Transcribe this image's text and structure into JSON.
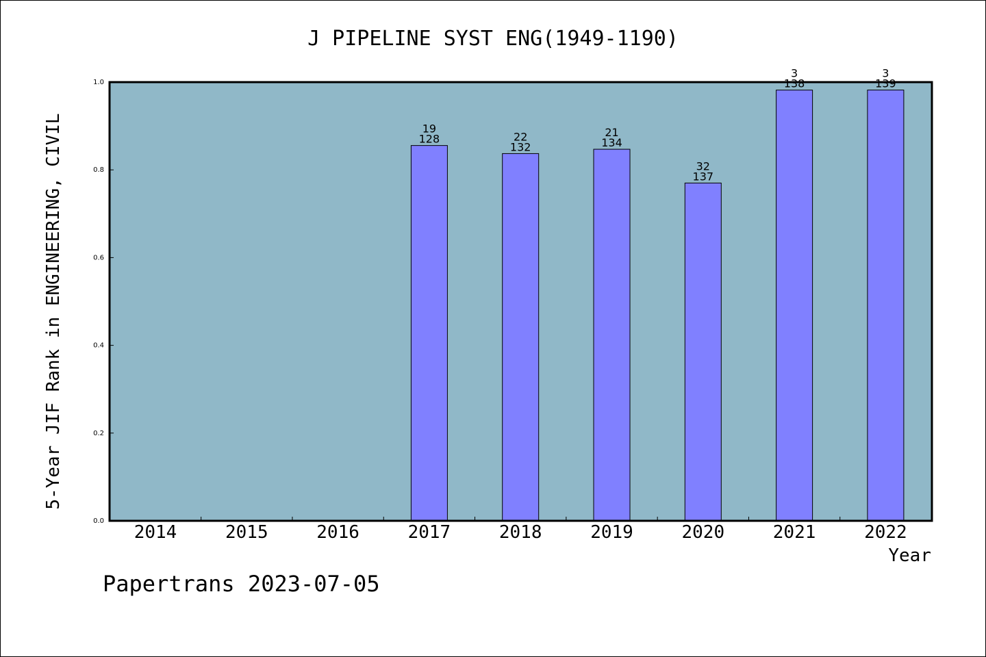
{
  "chart_data": {
    "type": "bar",
    "title": "J PIPELINE SYST ENG(1949-1190)",
    "xlabel": "Year",
    "ylabel": "5-Year JIF Rank in ENGINEERING, CIVIL",
    "categories": [
      "2014",
      "2015",
      "2016",
      "2017",
      "2018",
      "2019",
      "2020",
      "2021",
      "2022"
    ],
    "values": [
      null,
      null,
      null,
      0.8555,
      0.8371,
      0.847,
      0.77,
      0.9819,
      0.982
    ],
    "bar_labels": [
      null,
      null,
      null,
      {
        "rank": "19",
        "total": "128"
      },
      {
        "rank": "22",
        "total": "132"
      },
      {
        "rank": "21",
        "total": "134"
      },
      {
        "rank": "32",
        "total": "137"
      },
      {
        "rank": "3",
        "total": "138"
      },
      {
        "rank": "3",
        "total": "139"
      }
    ],
    "ylim": [
      0,
      1.0
    ],
    "yticks": [
      "0.0",
      "0.2",
      "0.4",
      "0.6",
      "0.8",
      "1.0"
    ],
    "grid": false,
    "legend": "none",
    "colors": {
      "plot_background": "#90b8c8",
      "bar_fill": "#8080ff",
      "bar_stroke": "#000000",
      "axis": "#000000",
      "text": "#000000"
    }
  },
  "footer": {
    "source": "Papertrans 2023-07-05"
  }
}
